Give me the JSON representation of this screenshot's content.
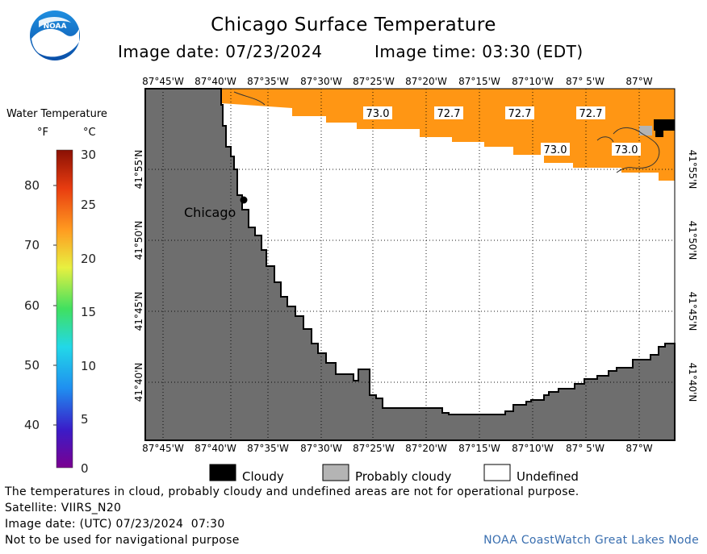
{
  "header": {
    "title": "Chicago Surface Temperature",
    "image_date_label": "Image date: 07/23/2024",
    "image_time_label": "Image time: 03:30 (EDT)"
  },
  "logo": {
    "text": "NOAA"
  },
  "colorbar": {
    "title": "Water Temperature",
    "unit_f": "°F",
    "unit_c": "°C",
    "f_ticks": [
      "80",
      "70",
      "60",
      "50",
      "40"
    ],
    "c_ticks": [
      "30",
      "25",
      "20",
      "15",
      "10",
      "5",
      "0"
    ]
  },
  "map": {
    "lon_labels": [
      "87°45'W",
      "87°40'W",
      "87°35'W",
      "87°30'W",
      "87°25'W",
      "87°20'W",
      "87°15'W",
      "87°10'W",
      "87° 5'W",
      "87°W"
    ],
    "lat_labels": [
      "41°55'N",
      "41°50'N",
      "41°45'N",
      "41°40'N"
    ],
    "city_label": "Chicago",
    "temp_labels": [
      "73.0",
      "72.7",
      "72.7",
      "72.7",
      "73.0",
      "73.0"
    ],
    "colors": {
      "land": "#6e6e6e",
      "water_warm": "#ff9614",
      "undefined": "#ffffff",
      "cloud": "#000000",
      "probably_cloudy": "#b4b4b4"
    }
  },
  "legend": {
    "cloudy": "Cloudy",
    "probably_cloudy": "Probably cloudy",
    "undefined": "Undefined"
  },
  "footer": {
    "note": "The temperatures in cloud, probably cloudy and undefined areas are not for operational purpose.",
    "satellite": "Satellite: VIIRS_N20",
    "utc_date": "Image date: (UTC) 07/23/2024  07:30",
    "nav_warning": "Not to be used for navigational purpose",
    "credit": "NOAA CoastWatch Great Lakes Node"
  }
}
